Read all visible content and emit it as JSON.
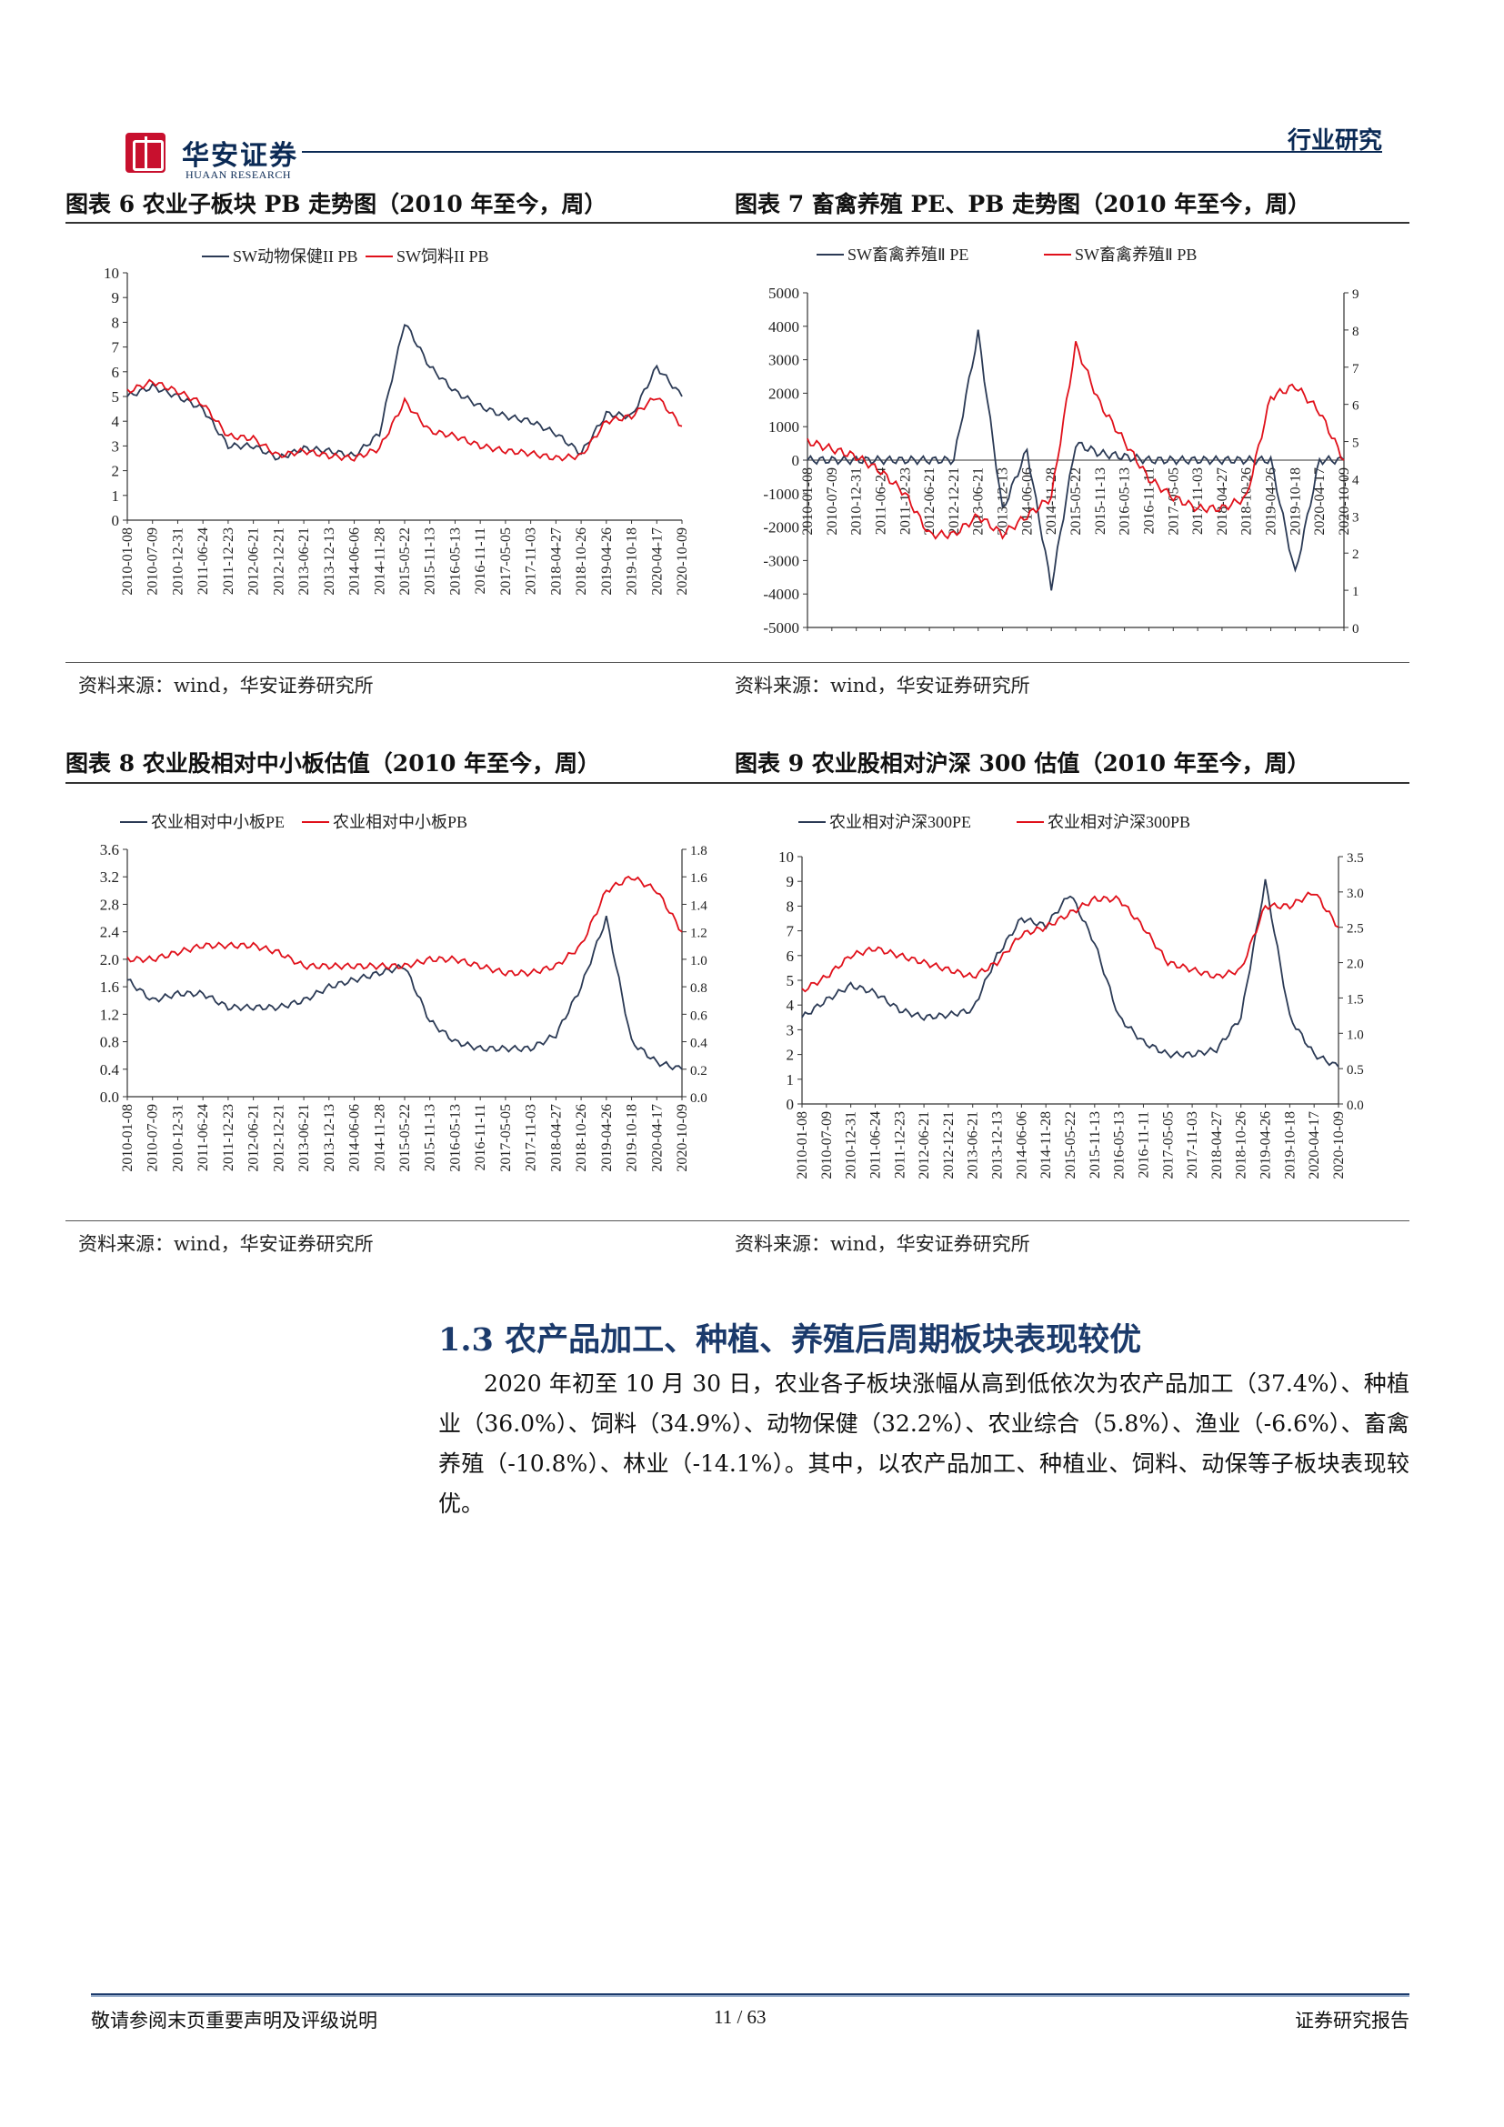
{
  "header": {
    "logo_text": "华安证券",
    "logo_sub": "HUAAN RESEARCH",
    "tag": "行业研究"
  },
  "charts_meta": [
    {
      "title": "图表 6  农业子板块 PB 走势图（2010 年至今，周）",
      "source": "资料来源：wind，华安证券研究所"
    },
    {
      "title": "图表 7  畜禽养殖 PE、PB 走势图（2010 年至今，周）",
      "source": "资料来源：wind，华安证券研究所"
    },
    {
      "title": "图表 8  农业股相对中小板估值（2010 年至今，周）",
      "source": "资料来源：wind，华安证券研究所"
    },
    {
      "title": "图表 9  农业股相对沪深 300 估值（2010 年至今，周）",
      "source": "资料来源：wind，华安证券研究所"
    }
  ],
  "chart_data": [
    {
      "type": "line",
      "x": [
        "2010-01-08",
        "2010-07-09",
        "2010-12-31",
        "2011-06-24",
        "2011-12-23",
        "2012-06-21",
        "2012-12-21",
        "2013-06-21",
        "2013-12-13",
        "2014-06-06",
        "2014-11-28",
        "2015-05-22",
        "2015-11-13",
        "2016-05-13",
        "2016-11-11",
        "2017-05-05",
        "2017-11-03",
        "2018-04-27",
        "2018-10-26",
        "2019-04-26",
        "2019-10-18",
        "2020-04-17",
        "2020-10-09"
      ],
      "ylim": [
        0,
        10
      ],
      "yticks": [
        "0",
        "1",
        "2",
        "3",
        "4",
        "5",
        "6",
        "7",
        "8",
        "9",
        "10"
      ],
      "series": [
        {
          "name": "SW动物保健II PB",
          "color": "#2b3a55",
          "values": [
            5.0,
            5.4,
            5.0,
            4.5,
            3.0,
            3.0,
            2.5,
            2.9,
            2.8,
            2.6,
            3.5,
            8.0,
            6.2,
            5.2,
            4.6,
            4.2,
            4.0,
            3.5,
            2.7,
            4.3,
            4.2,
            6.2,
            5.0
          ]
        },
        {
          "name": "SW饲料II PB",
          "color": "#e0101a",
          "values": [
            5.2,
            5.6,
            5.2,
            4.7,
            3.4,
            3.3,
            2.6,
            2.8,
            2.6,
            2.5,
            2.9,
            4.8,
            3.6,
            3.4,
            3.0,
            2.8,
            2.7,
            2.5,
            2.6,
            4.0,
            4.2,
            5.0,
            3.8
          ]
        }
      ]
    },
    {
      "type": "line",
      "x": [
        "2010-01-08",
        "2010-07-09",
        "2010-12-31",
        "2011-06-24",
        "2011-12-23",
        "2012-06-21",
        "2012-12-21",
        "2013-06-21",
        "2013-12-13",
        "2014-06-06",
        "2014-11-28",
        "2015-05-22",
        "2015-11-13",
        "2016-05-13",
        "2016-11-11",
        "2017-05-05",
        "2017-11-03",
        "2018-04-27",
        "2018-10-26",
        "2019-04-26",
        "2019-10-18",
        "2020-04-17",
        "2020-10-09"
      ],
      "ylim": [
        -5000,
        5000
      ],
      "yticks": [
        "5000",
        "4000",
        "3000",
        "2000",
        "1000",
        "0",
        "-1000",
        "-2000",
        "-3000",
        "-4000",
        "-5000"
      ],
      "y2lim": [
        0,
        9
      ],
      "y2ticks": [
        "9",
        "8",
        "7",
        "6",
        "5",
        "4",
        "3",
        "2",
        "1",
        "0"
      ],
      "series": [
        {
          "name": "SW畜禽养殖Ⅱ PE",
          "color": "#2b3a55",
          "axis": "left",
          "values": [
            0,
            0,
            0,
            0,
            0,
            0,
            0,
            3800,
            -1500,
            300,
            -3800,
            500,
            200,
            100,
            0,
            0,
            0,
            0,
            0,
            0,
            -3400,
            0,
            0
          ]
        },
        {
          "name": "SW畜禽养殖Ⅱ PB",
          "color": "#e0101a",
          "axis": "right",
          "values": [
            5.0,
            4.8,
            4.6,
            4.2,
            3.6,
            2.5,
            2.5,
            3.0,
            2.5,
            3.0,
            3.5,
            7.6,
            6.0,
            5.0,
            4.0,
            3.5,
            3.2,
            3.2,
            3.5,
            6.2,
            6.5,
            5.8,
            4.5
          ]
        }
      ]
    },
    {
      "type": "line",
      "x": [
        "2010-01-08",
        "2010-07-09",
        "2010-12-31",
        "2011-06-24",
        "2011-12-23",
        "2012-06-21",
        "2012-12-21",
        "2013-06-21",
        "2013-12-13",
        "2014-06-06",
        "2014-11-28",
        "2015-05-22",
        "2015-11-13",
        "2016-05-13",
        "2016-11-11",
        "2017-05-05",
        "2017-11-03",
        "2018-04-27",
        "2018-10-26",
        "2019-04-26",
        "2019-10-18",
        "2020-04-17",
        "2020-10-09"
      ],
      "ylim": [
        0,
        3.6
      ],
      "yticks": [
        "3.6",
        "3.2",
        "2.8",
        "2.4",
        "2.0",
        "1.6",
        "1.2",
        "0.8",
        "0.4",
        "0.0"
      ],
      "y2lim": [
        0,
        1.8
      ],
      "y2ticks": [
        "1.8",
        "1.6",
        "1.4",
        "1.2",
        "1.0",
        "0.8",
        "0.6",
        "0.4",
        "0.2",
        "0.0"
      ],
      "series": [
        {
          "name": "农业相对中小板PE",
          "color": "#2b3a55",
          "axis": "left",
          "values": [
            1.7,
            1.4,
            1.5,
            1.5,
            1.3,
            1.3,
            1.3,
            1.4,
            1.6,
            1.7,
            1.8,
            1.9,
            1.1,
            0.8,
            0.7,
            0.7,
            0.7,
            0.9,
            1.6,
            2.6,
            0.8,
            0.5,
            0.4
          ]
        },
        {
          "name": "农业相对中小板PB",
          "color": "#e0101a",
          "axis": "right",
          "values": [
            1.0,
            1.0,
            1.05,
            1.1,
            1.1,
            1.1,
            1.05,
            0.95,
            0.95,
            0.95,
            0.95,
            0.95,
            1.0,
            1.0,
            0.95,
            0.9,
            0.9,
            0.95,
            1.1,
            1.5,
            1.6,
            1.5,
            1.2
          ]
        }
      ]
    },
    {
      "type": "line",
      "x": [
        "2010-01-08",
        "2010-07-09",
        "2010-12-31",
        "2011-06-24",
        "2011-12-23",
        "2012-06-21",
        "2012-12-21",
        "2013-06-21",
        "2013-12-13",
        "2014-06-06",
        "2014-11-28",
        "2015-05-22",
        "2015-11-13",
        "2016-05-13",
        "2016-11-11",
        "2017-05-05",
        "2017-11-03",
        "2018-04-27",
        "2018-10-26",
        "2019-04-26",
        "2019-10-18",
        "2020-04-17",
        "2020-10-09"
      ],
      "ylim": [
        0,
        10
      ],
      "yticks": [
        "10",
        "9",
        "8",
        "7",
        "6",
        "5",
        "4",
        "3",
        "2",
        "1",
        "0"
      ],
      "y2lim": [
        0,
        3.5
      ],
      "y2ticks": [
        "3.5",
        "3.0",
        "2.5",
        "2.0",
        "1.5",
        "1.0",
        "0.5",
        "0.0"
      ],
      "series": [
        {
          "name": "农业相对沪深300PE",
          "color": "#2b3a55",
          "axis": "left",
          "values": [
            3.5,
            4.2,
            4.8,
            4.5,
            3.8,
            3.5,
            3.6,
            3.8,
            6.0,
            7.5,
            7.2,
            8.5,
            6.5,
            3.5,
            2.5,
            2.0,
            2.0,
            2.2,
            3.5,
            9.0,
            3.5,
            2.0,
            1.5
          ]
        },
        {
          "name": "农业相对沪深300PB",
          "color": "#e0101a",
          "axis": "right",
          "values": [
            1.6,
            1.8,
            2.1,
            2.2,
            2.1,
            2.0,
            1.9,
            1.8,
            2.0,
            2.4,
            2.5,
            2.7,
            2.9,
            2.9,
            2.5,
            2.0,
            1.9,
            1.8,
            1.9,
            2.8,
            2.8,
            3.0,
            2.5
          ]
        }
      ]
    }
  ],
  "section": {
    "title": "1.3 农产品加工、种植、养殖后周期板块表现较优",
    "paragraph": "2020 年初至 10 月 30 日，农业各子板块涨幅从高到低依次为农产品加工（37.4%）、种植业（36.0%）、饲料（34.9%）、动物保健（32.2%）、农业综合（5.8%）、渔业（-6.6%）、畜禽养殖（-10.8%）、林业（-14.1%）。其中，以农产品加工、种植业、饲料、动保等子板块表现较优。"
  },
  "footer": {
    "left": "敬请参阅末页重要声明及评级说明",
    "center": "11 / 63",
    "right": "证券研究报告"
  }
}
